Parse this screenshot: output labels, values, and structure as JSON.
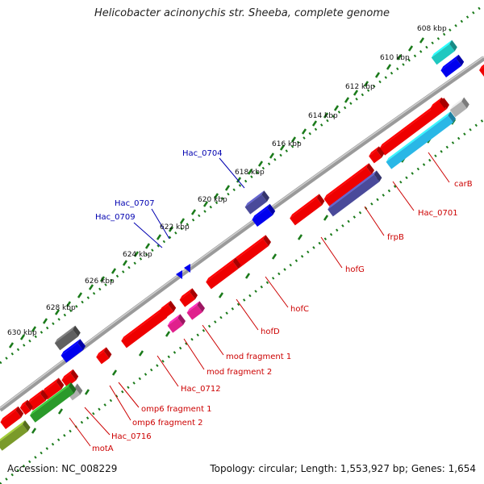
{
  "title": "Helicobacter acinonychis str. Sheeba, complete genome",
  "footer": {
    "accession": "Accession: NC_008229",
    "topology": "Topology: circular; Length: 1,553,927 bp; Genes: 1,654"
  },
  "colors": {
    "backbone": "#7f7f7f",
    "tick": "#1a7a1a",
    "forward_label": "#0000b0",
    "reverse_label": "#cc0000",
    "gene_red": "#ee0000",
    "gene_blue": "#0000ee",
    "gene_navy": "#4a4a9a",
    "gene_cyan": "#2ab7e6",
    "gene_teal": "#1fc8c0",
    "gene_magenta": "#e0208c",
    "gene_green": "#2a9a2a",
    "gene_olive": "#7a9a2a",
    "gene_gray": "#b0b0b0",
    "gene_darkgray": "#606060"
  },
  "scale_labels": [
    "608 kbp",
    "610 kbp",
    "612 kbp",
    "614 kbp",
    "616 kbp",
    "618 kbp",
    "620 kbp",
    "622 kbp",
    "624 kbp",
    "626 kbp",
    "628 kbp",
    "630 kbp"
  ],
  "forward_labels": [
    "Hac_0704",
    "Hac_0707",
    "Hac_0709"
  ],
  "reverse_labels": [
    "carB",
    "Hac_0701",
    "frpB",
    "hofG",
    "hofC",
    "hofD",
    "mod fragment 1",
    "mod fragment 2",
    "Hac_0712",
    "omp6 fragment 1",
    "omp6 fragment 2",
    "Hac_0716",
    "motA"
  ]
}
